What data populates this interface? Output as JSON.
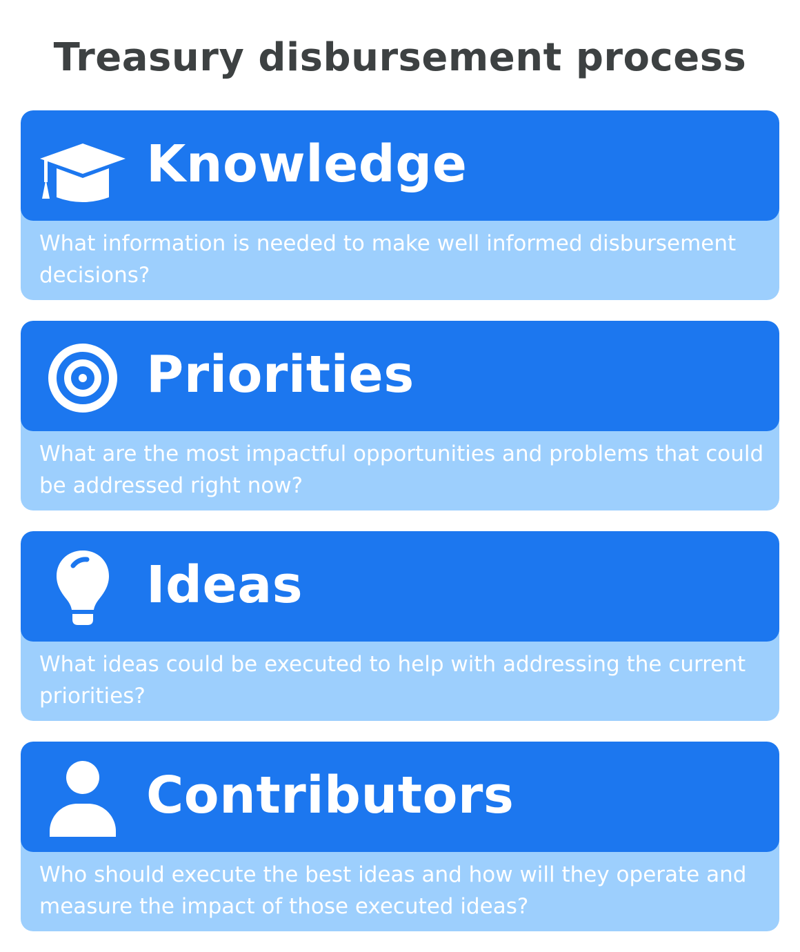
{
  "title": "Treasury disbursement process",
  "colors": {
    "header": "#1c77ef",
    "body": "#9dcffd",
    "title_text": "#3d4142",
    "card_text": "#ffffff"
  },
  "steps": [
    {
      "icon": "graduation-cap-icon",
      "heading": "Knowledge",
      "description": "What information is needed to make well informed disbursement decisions?"
    },
    {
      "icon": "target-icon",
      "heading": "Priorities",
      "description": "What are the most impactful opportunities and problems that could be addressed right now?"
    },
    {
      "icon": "lightbulb-icon",
      "heading": "Ideas",
      "description": "What ideas could be executed to help with addressing the current priorities?"
    },
    {
      "icon": "person-icon",
      "heading": "Contributors",
      "description": "Who should execute the best ideas and how will they operate and measure the impact of those executed ideas?"
    }
  ]
}
